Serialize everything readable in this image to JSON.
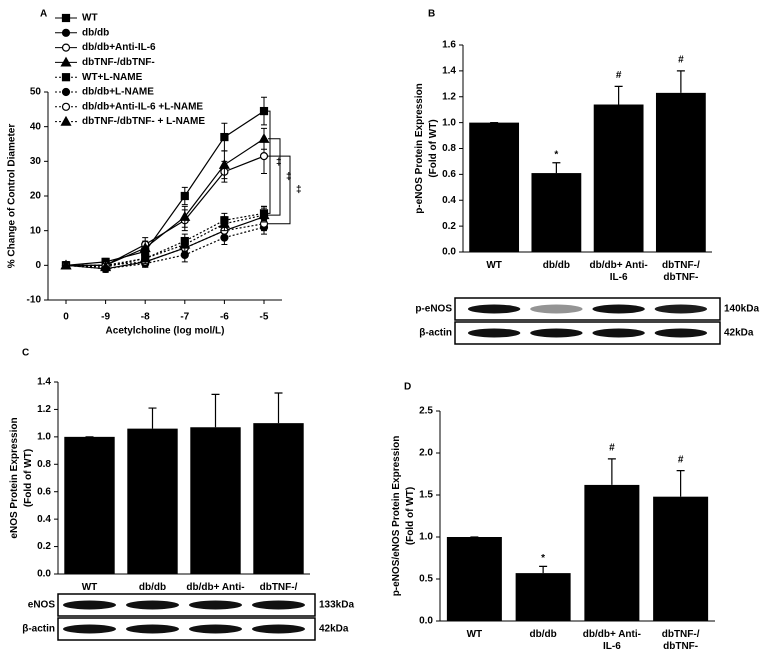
{
  "chart_data": [
    {
      "type": "line",
      "panel": "A",
      "categories": [
        "0",
        "-9",
        "-8",
        "-7",
        "-6",
        "-5"
      ],
      "ylim": [
        -10,
        50
      ],
      "yticks": [
        -10,
        0,
        10,
        20,
        30,
        40,
        50
      ],
      "x_label": "Acetylcholine (log mol/L)",
      "y_label": "% Change of Control Diameter",
      "series": [
        {
          "name": "WT",
          "color": "#000000",
          "marker": "square",
          "line_style": "solid",
          "values": [
            0,
            1,
            4,
            20,
            37,
            44.5
          ],
          "errors": [
            1,
            1,
            2,
            2.5,
            4,
            4
          ]
        },
        {
          "name": "db/db",
          "color": "#000000",
          "marker": "circle",
          "line_style": "solid",
          "values": [
            0,
            -1,
            1,
            5,
            10,
            14
          ],
          "errors": [
            1,
            1,
            1.5,
            2,
            2.5,
            3
          ]
        },
        {
          "name": "db/db+Anti-IL-6",
          "color": "#000000",
          "marker": "open-circle",
          "line_style": "solid",
          "values": [
            0,
            0,
            6,
            13,
            27,
            31.5
          ],
          "errors": [
            1,
            1,
            2,
            3,
            3,
            5
          ]
        },
        {
          "name": "dbTNF-/dbTNF-",
          "color": "#000000",
          "marker": "triangle",
          "line_style": "solid",
          "values": [
            0,
            0,
            5,
            14,
            29,
            36.5
          ],
          "errors": [
            1,
            1,
            2,
            3,
            4,
            3
          ]
        },
        {
          "name": "WT+L-NAME",
          "color": "#000000",
          "marker": "square",
          "line_style": "dotted",
          "values": [
            0,
            0,
            2,
            7,
            13,
            15
          ],
          "errors": [
            1,
            1,
            1.5,
            2,
            2,
            2
          ]
        },
        {
          "name": "db/db+L-NAME",
          "color": "#000000",
          "marker": "circle",
          "line_style": "dotted",
          "values": [
            0,
            -1,
            0.5,
            3,
            8,
            11
          ],
          "errors": [
            1,
            1,
            1,
            2,
            2,
            2
          ]
        },
        {
          "name": "db/db+Anti-IL-6 +L-NAME",
          "color": "#000000",
          "marker": "open-circle",
          "line_style": "dotted",
          "values": [
            0,
            0,
            1,
            5,
            10,
            12
          ],
          "errors": [
            1,
            1,
            1.5,
            2,
            2,
            2
          ]
        },
        {
          "name": "dbTNF-/dbTNF- + L-NAME",
          "color": "#000000",
          "marker": "triangle",
          "line_style": "dotted",
          "values": [
            0,
            -0.5,
            2,
            6,
            12,
            14.5
          ],
          "errors": [
            1,
            1,
            1.5,
            2,
            2,
            2
          ]
        }
      ],
      "annotations": [
        "‡",
        "‡",
        "‡"
      ]
    },
    {
      "type": "bar",
      "panel": "B",
      "categories": [
        "WT",
        "db/db",
        "db/db+ Anti-IL-6",
        "dbTNF-/ dbTNF-"
      ],
      "values": [
        1.0,
        0.61,
        1.14,
        1.23
      ],
      "errors": [
        0,
        0.08,
        0.14,
        0.17
      ],
      "markers": [
        null,
        "*",
        "#",
        "#"
      ],
      "color": "#000000",
      "ylim": [
        0,
        1.6
      ],
      "yticks": [
        {
          "value": 0,
          "label": "0.0"
        },
        0.2,
        0.4,
        0.6,
        0.8,
        {
          "value": 1,
          "label": "1.0"
        },
        1.2,
        1.4,
        1.6
      ],
      "y_label": [
        "p-eNOS Protein Expression",
        "(Fold of WT)"
      ],
      "blot": [
        {
          "label": "p-eNOS",
          "size": "140kDa"
        },
        {
          "label": "β-actin",
          "size": "42kDa"
        }
      ]
    },
    {
      "type": "bar",
      "panel": "C",
      "categories": [
        "WT",
        "db/db",
        "db/db+ Anti-IL-6",
        "dbTNF-/ dbTNF-"
      ],
      "values": [
        1.0,
        1.06,
        1.07,
        1.1
      ],
      "errors": [
        0,
        0.15,
        0.24,
        0.22
      ],
      "color": "#000000",
      "ylim": [
        0,
        1.4
      ],
      "yticks": [
        {
          "value": 0,
          "label": "0.0"
        },
        0.2,
        0.4,
        0.6,
        0.8,
        {
          "value": 1,
          "label": "1.0"
        },
        1.2,
        1.4
      ],
      "y_label": [
        "eNOS Protein Expression",
        "(Fold of WT)"
      ],
      "blot": [
        {
          "label": "eNOS",
          "size": "133kDa"
        },
        {
          "label": "β-actin",
          "size": "42kDa"
        }
      ]
    },
    {
      "type": "bar",
      "panel": "D",
      "categories": [
        "WT",
        "db/db",
        "db/db+ Anti-IL-6",
        "dbTNF-/ dbTNF-"
      ],
      "values": [
        1.0,
        0.57,
        1.62,
        1.48
      ],
      "errors": [
        0,
        0.08,
        0.31,
        0.31
      ],
      "markers": [
        null,
        "*",
        "#",
        "#"
      ],
      "color": "#000000",
      "ylim": [
        0,
        2.5
      ],
      "yticks": [
        {
          "value": 0,
          "label": "0.0"
        },
        0.5,
        {
          "value": 1,
          "label": "1.0"
        },
        1.5,
        {
          "value": 2,
          "label": "2.0"
        },
        2.5
      ],
      "y_label": [
        "p-eNOS/eNOS Protein Expression",
        "(Fold of WT)"
      ]
    }
  ]
}
